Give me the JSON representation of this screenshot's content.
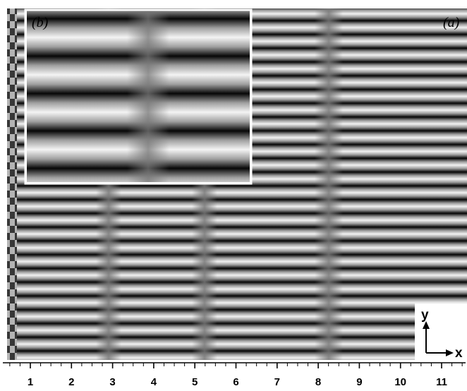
{
  "figure": {
    "panel_a_label": "(a)",
    "panel_b_label": "(b)",
    "axis_y_label": "y",
    "axis_x_label": "x",
    "scale_ticks": [
      "1",
      "2",
      "3",
      "4",
      "5",
      "6",
      "7",
      "8",
      "9",
      "10",
      "11"
    ]
  }
}
